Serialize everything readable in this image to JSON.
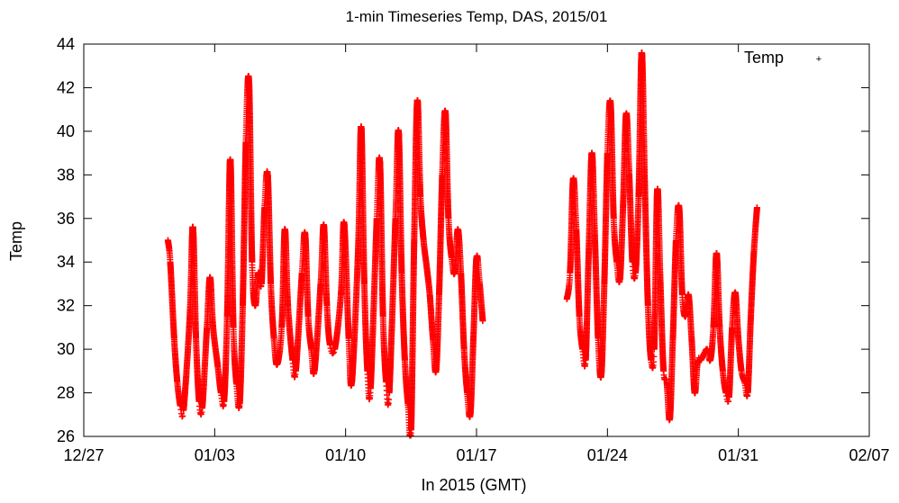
{
  "chart_data": {
    "type": "scatter",
    "title": "1-min Timeseries Temp, DAS, 2015/01",
    "xlabel": "In 2015 (GMT)",
    "ylabel": "Temp",
    "xlim": [
      "2014-12-27",
      "2015-02-07"
    ],
    "ylim": [
      26,
      44
    ],
    "x_ticks": [
      "12/27",
      "01/03",
      "01/10",
      "01/17",
      "01/24",
      "01/31",
      "02/07"
    ],
    "y_ticks": [
      26,
      28,
      30,
      32,
      34,
      36,
      38,
      40,
      42,
      44
    ],
    "grid": false,
    "legend": "top-right",
    "series": [
      {
        "name": "Temp",
        "color": "#ff0000",
        "marker": "+",
        "points": [
          [
            "2014-12-31 12:00",
            35.0
          ],
          [
            "2014-12-31 15:00",
            34.0
          ],
          [
            "2014-12-31 20:00",
            30.5
          ],
          [
            "2015-01-01 00:00",
            28.5
          ],
          [
            "2015-01-01 04:00",
            27.4
          ],
          [
            "2015-01-01 08:00",
            27.2
          ],
          [
            "2015-01-01 16:00",
            31.5
          ],
          [
            "2015-01-01 20:00",
            35.6
          ],
          [
            "2015-01-02 00:00",
            30.5
          ],
          [
            "2015-01-02 04:00",
            27.6
          ],
          [
            "2015-01-02 08:00",
            27.3
          ],
          [
            "2015-01-02 14:00",
            31.0
          ],
          [
            "2015-01-02 18:00",
            33.3
          ],
          [
            "2015-01-02 22:00",
            31.0
          ],
          [
            "2015-01-03 04:00",
            29.2
          ],
          [
            "2015-01-03 08:00",
            28.0
          ],
          [
            "2015-01-03 12:00",
            27.6
          ],
          [
            "2015-01-03 16:00",
            31.5
          ],
          [
            "2015-01-03 20:00",
            38.7
          ],
          [
            "2015-01-04 00:00",
            31.0
          ],
          [
            "2015-01-04 04:00",
            28.4
          ],
          [
            "2015-01-04 08:00",
            27.5
          ],
          [
            "2015-01-04 12:00",
            32.0
          ],
          [
            "2015-01-04 16:00",
            39.5
          ],
          [
            "2015-01-04 20:00",
            42.3
          ],
          [
            "2015-01-05 00:00",
            34.0
          ],
          [
            "2015-01-05 04:00",
            32.0
          ],
          [
            "2015-01-05 08:00",
            33.5
          ],
          [
            "2015-01-05 12:00",
            33.0
          ],
          [
            "2015-01-05 16:00",
            36.5
          ],
          [
            "2015-01-05 20:00",
            38.0
          ],
          [
            "2015-01-06 00:00",
            33.0
          ],
          [
            "2015-01-06 04:00",
            30.5
          ],
          [
            "2015-01-06 08:00",
            29.3
          ],
          [
            "2015-01-06 14:00",
            31.0
          ],
          [
            "2015-01-06 18:00",
            35.5
          ],
          [
            "2015-01-06 22:00",
            32.0
          ],
          [
            "2015-01-07 04:00",
            29.5
          ],
          [
            "2015-01-07 08:00",
            29.0
          ],
          [
            "2015-01-07 16:00",
            33.5
          ],
          [
            "2015-01-07 20:00",
            35.3
          ],
          [
            "2015-01-08 00:00",
            31.5
          ],
          [
            "2015-01-08 04:00",
            30.0
          ],
          [
            "2015-01-08 08:00",
            29.0
          ],
          [
            "2015-01-08 16:00",
            33.0
          ],
          [
            "2015-01-08 20:00",
            35.7
          ],
          [
            "2015-01-09 00:00",
            32.0
          ],
          [
            "2015-01-09 04:00",
            30.2
          ],
          [
            "2015-01-09 10:00",
            30.0
          ],
          [
            "2015-01-09 18:00",
            32.5
          ],
          [
            "2015-01-09 22:00",
            35.8
          ],
          [
            "2015-01-10 04:00",
            30.5
          ],
          [
            "2015-01-10 08:00",
            28.5
          ],
          [
            "2015-01-10 16:00",
            34.5
          ],
          [
            "2015-01-10 20:00",
            40.2
          ],
          [
            "2015-01-11 00:00",
            33.0
          ],
          [
            "2015-01-11 04:00",
            29.0
          ],
          [
            "2015-01-11 08:00",
            28.2
          ],
          [
            "2015-01-11 16:00",
            36.0
          ],
          [
            "2015-01-11 20:00",
            38.6
          ],
          [
            "2015-01-12 00:00",
            31.5
          ],
          [
            "2015-01-12 04:00",
            28.5
          ],
          [
            "2015-01-12 08:00",
            28.0
          ],
          [
            "2015-01-12 16:00",
            36.0
          ],
          [
            "2015-01-12 20:00",
            40.0
          ],
          [
            "2015-01-13 00:00",
            33.5
          ],
          [
            "2015-01-13 04:00",
            29.5
          ],
          [
            "2015-01-13 08:00",
            27.5
          ],
          [
            "2015-01-13 12:00",
            26.3
          ],
          [
            "2015-01-13 16:00",
            35.0
          ],
          [
            "2015-01-13 20:00",
            41.4
          ],
          [
            "2015-01-14 00:00",
            37.0
          ],
          [
            "2015-01-14 04:00",
            35.0
          ],
          [
            "2015-01-14 08:00",
            33.8
          ],
          [
            "2015-01-14 12:00",
            32.5
          ],
          [
            "2015-01-14 16:00",
            30.5
          ],
          [
            "2015-01-14 20:00",
            29.0
          ],
          [
            "2015-01-15 00:00",
            32.5
          ],
          [
            "2015-01-15 04:00",
            38.0
          ],
          [
            "2015-01-15 08:00",
            40.9
          ],
          [
            "2015-01-15 12:00",
            36.0
          ],
          [
            "2015-01-15 16:00",
            34.2
          ],
          [
            "2015-01-15 20:00",
            33.5
          ],
          [
            "2015-01-16 00:00",
            35.5
          ],
          [
            "2015-01-16 04:00",
            33.5
          ],
          [
            "2015-01-16 08:00",
            30.0
          ],
          [
            "2015-01-16 12:00",
            28.0
          ],
          [
            "2015-01-16 16:00",
            27.0
          ],
          [
            "2015-01-16 20:00",
            30.5
          ],
          [
            "2015-01-17 00:00",
            34.2
          ],
          [
            "2015-01-17 04:00",
            33.0
          ],
          [
            "2015-01-17 08:00",
            31.3
          ],
          [
            "2015-01-21 20:00",
            32.3
          ],
          [
            "2015-01-22 00:00",
            33.5
          ],
          [
            "2015-01-22 04:00",
            37.8
          ],
          [
            "2015-01-22 08:00",
            35.5
          ],
          [
            "2015-01-22 12:00",
            31.5
          ],
          [
            "2015-01-22 16:00",
            30.0
          ],
          [
            "2015-01-22 20:00",
            29.5
          ],
          [
            "2015-01-23 00:00",
            34.5
          ],
          [
            "2015-01-23 04:00",
            39.0
          ],
          [
            "2015-01-23 08:00",
            35.0
          ],
          [
            "2015-01-23 12:00",
            30.5
          ],
          [
            "2015-01-23 16:00",
            28.8
          ],
          [
            "2015-01-23 20:00",
            33.0
          ],
          [
            "2015-01-24 00:00",
            39.0
          ],
          [
            "2015-01-24 04:00",
            41.3
          ],
          [
            "2015-01-24 08:00",
            36.0
          ],
          [
            "2015-01-24 12:00",
            34.0
          ],
          [
            "2015-01-24 16:00",
            33.2
          ],
          [
            "2015-01-24 20:00",
            36.5
          ],
          [
            "2015-01-25 00:00",
            40.8
          ],
          [
            "2015-01-25 04:00",
            38.0
          ],
          [
            "2015-01-25 08:00",
            34.0
          ],
          [
            "2015-01-25 12:00",
            33.5
          ],
          [
            "2015-01-25 16:00",
            37.0
          ],
          [
            "2015-01-25 20:00",
            43.6
          ],
          [
            "2015-01-26 00:00",
            37.5
          ],
          [
            "2015-01-26 04:00",
            32.0
          ],
          [
            "2015-01-26 08:00",
            29.5
          ],
          [
            "2015-01-26 12:00",
            30.0
          ],
          [
            "2015-01-26 16:00",
            37.3
          ],
          [
            "2015-01-26 20:00",
            33.0
          ],
          [
            "2015-01-27 00:00",
            29.0
          ],
          [
            "2015-01-27 04:00",
            28.5
          ],
          [
            "2015-01-27 08:00",
            26.8
          ],
          [
            "2015-01-27 12:00",
            30.5
          ],
          [
            "2015-01-27 16:00",
            35.0
          ],
          [
            "2015-01-27 20:00",
            36.5
          ],
          [
            "2015-01-28 00:00",
            32.5
          ],
          [
            "2015-01-28 04:00",
            31.5
          ],
          [
            "2015-01-28 08:00",
            32.5
          ],
          [
            "2015-01-28 12:00",
            30.5
          ],
          [
            "2015-01-28 16:00",
            28.0
          ],
          [
            "2015-01-28 20:00",
            29.5
          ],
          [
            "2015-01-29 00:00",
            29.5
          ],
          [
            "2015-01-29 04:00",
            29.8
          ],
          [
            "2015-01-29 08:00",
            30.0
          ],
          [
            "2015-01-29 12:00",
            29.5
          ],
          [
            "2015-01-29 16:00",
            31.0
          ],
          [
            "2015-01-29 20:00",
            34.4
          ],
          [
            "2015-01-30 00:00",
            31.0
          ],
          [
            "2015-01-30 04:00",
            29.0
          ],
          [
            "2015-01-30 08:00",
            28.0
          ],
          [
            "2015-01-30 12:00",
            27.8
          ],
          [
            "2015-01-30 16:00",
            31.0
          ],
          [
            "2015-01-30 20:00",
            32.6
          ],
          [
            "2015-01-31 00:00",
            30.5
          ],
          [
            "2015-01-31 04:00",
            29.0
          ],
          [
            "2015-01-31 08:00",
            28.5
          ],
          [
            "2015-01-31 12:00",
            28.0
          ],
          [
            "2015-01-31 16:00",
            31.5
          ],
          [
            "2015-01-31 20:00",
            34.5
          ],
          [
            "2015-02-01 00:00",
            36.5
          ]
        ]
      }
    ]
  }
}
